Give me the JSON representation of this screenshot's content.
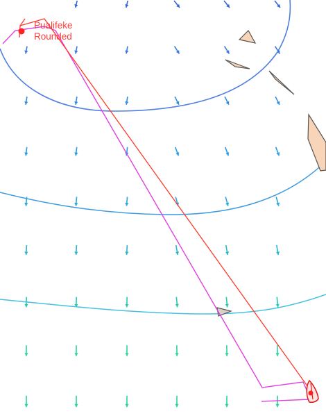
{
  "waypoint": {
    "name": "Pualifeke",
    "status": "Rounded"
  },
  "colors": {
    "background": "#ffffff",
    "route_line": "#ff3a2e",
    "track_line": "#e040e0",
    "isobar_upper": "#4f7fe0",
    "isobar_middle": "#3f9be0",
    "isobar_lower": "#48c0e0",
    "islands_fill": "#f8d4b8",
    "islands_stroke": "#555555",
    "wind_arrow_colors": [
      "#3564d8",
      "#3d78e0",
      "#2e8ce0",
      "#289ae0",
      "#2aa6da",
      "#26b8cc",
      "#28c8b0",
      "#2ad49a"
    ],
    "boat_fill": "#ffe4e4",
    "boat_stroke": "#e01818",
    "waypoint_marker": "#ff2020"
  },
  "icons": {
    "wind_arrow": "down-arrow-icon",
    "boat": "sailboat-icon",
    "waypoint": "waypoint-marker-icon",
    "island": "island-polygon"
  }
}
